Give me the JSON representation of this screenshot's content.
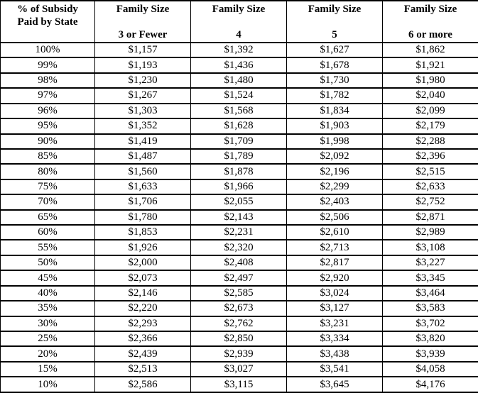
{
  "table": {
    "header": {
      "subsidy_line1": "% of Subsidy",
      "subsidy_line2": "Paid by State",
      "family_size_label": "Family Size",
      "sizes": [
        "3 or Fewer",
        "4",
        "5",
        "6 or more"
      ]
    },
    "rows": [
      {
        "pct": "100%",
        "values": [
          "$1,157",
          "$1,392",
          "$1,627",
          "$1,862"
        ]
      },
      {
        "pct": "99%",
        "values": [
          "$1,193",
          "$1,436",
          "$1,678",
          "$1,921"
        ]
      },
      {
        "pct": "98%",
        "values": [
          "$1,230",
          "$1,480",
          "$1,730",
          "$1,980"
        ]
      },
      {
        "pct": "97%",
        "values": [
          "$1,267",
          "$1,524",
          "$1,782",
          "$2,040"
        ]
      },
      {
        "pct": "96%",
        "values": [
          "$1,303",
          "$1,568",
          "$1,834",
          "$2,099"
        ]
      },
      {
        "pct": "95%",
        "values": [
          "$1,352",
          "$1,628",
          "$1,903",
          "$2,179"
        ]
      },
      {
        "pct": "90%",
        "values": [
          "$1,419",
          "$1,709",
          "$1,998",
          "$2,288"
        ]
      },
      {
        "pct": "85%",
        "values": [
          "$1,487",
          "$1,789",
          "$2,092",
          "$2,396"
        ]
      },
      {
        "pct": "80%",
        "values": [
          "$1,560",
          "$1,878",
          "$2,196",
          "$2,515"
        ]
      },
      {
        "pct": "75%",
        "values": [
          "$1,633",
          "$1,966",
          "$2,299",
          "$2,633"
        ]
      },
      {
        "pct": "70%",
        "values": [
          "$1,706",
          "$2,055",
          "$2,403",
          "$2,752"
        ]
      },
      {
        "pct": "65%",
        "values": [
          "$1,780",
          "$2,143",
          "$2,506",
          "$2,871"
        ]
      },
      {
        "pct": "60%",
        "values": [
          "$1,853",
          "$2,231",
          "$2,610",
          "$2,989"
        ]
      },
      {
        "pct": "55%",
        "values": [
          "$1,926",
          "$2,320",
          "$2,713",
          "$3,108"
        ]
      },
      {
        "pct": "50%",
        "values": [
          "$2,000",
          "$2,408",
          "$2,817",
          "$3,227"
        ]
      },
      {
        "pct": "45%",
        "values": [
          "$2,073",
          "$2,497",
          "$2,920",
          "$3,345"
        ]
      },
      {
        "pct": "40%",
        "values": [
          "$2,146",
          "$2,585",
          "$3,024",
          "$3,464"
        ]
      },
      {
        "pct": "35%",
        "values": [
          "$2,220",
          "$2,673",
          "$3,127",
          "$3,583"
        ]
      },
      {
        "pct": "30%",
        "values": [
          "$2,293",
          "$2,762",
          "$3,231",
          "$3,702"
        ]
      },
      {
        "pct": "25%",
        "values": [
          "$2,366",
          "$2,850",
          "$3,334",
          "$3,820"
        ]
      },
      {
        "pct": "20%",
        "values": [
          "$2,439",
          "$2,939",
          "$3,438",
          "$3,939"
        ]
      },
      {
        "pct": "15%",
        "values": [
          "$2,513",
          "$3,027",
          "$3,541",
          "$4,058"
        ]
      },
      {
        "pct": "10%",
        "values": [
          "$2,586",
          "$3,115",
          "$3,645",
          "$4,176"
        ]
      }
    ]
  }
}
